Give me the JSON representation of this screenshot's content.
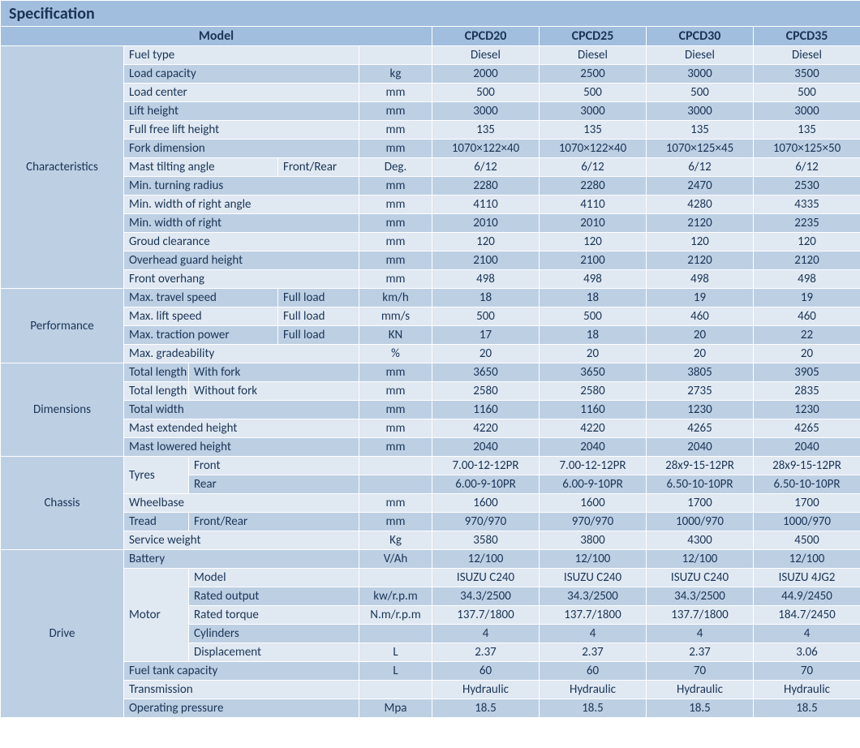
{
  "title": "Specification",
  "header": {
    "model_label": "Model",
    "models": [
      "CPCD20",
      "CPCD25",
      "CPCD30",
      "CPCD35"
    ]
  },
  "colors": {
    "header_bg": "#a1bede",
    "light_bg": "#e0e8f2",
    "dark_bg": "#bdcfe3",
    "border": "#ffffff",
    "text": "#1a3556"
  },
  "typography": {
    "title_fontsize": 20,
    "header_fontsize": 16,
    "body_fontsize": 15,
    "font_family": "Calibri"
  },
  "sections": [
    {
      "name": "Characteristics",
      "rows": [
        {
          "band": "light",
          "label": "Fuel type",
          "sub": "",
          "unit": "",
          "v": [
            "Diesel",
            "Diesel",
            "Diesel",
            "Diesel"
          ]
        },
        {
          "band": "dark",
          "label": "Load capacity",
          "sub": "",
          "unit": "kg",
          "v": [
            "2000",
            "2500",
            "3000",
            "3500"
          ]
        },
        {
          "band": "light",
          "label": "Load center",
          "sub": "",
          "unit": "mm",
          "v": [
            "500",
            "500",
            "500",
            "500"
          ]
        },
        {
          "band": "dark",
          "label": "Lift height",
          "sub": "",
          "unit": "mm",
          "v": [
            "3000",
            "3000",
            "3000",
            "3000"
          ]
        },
        {
          "band": "light",
          "label": "Full free lift height",
          "sub": "",
          "unit": "mm",
          "v": [
            "135",
            "135",
            "135",
            "135"
          ]
        },
        {
          "band": "dark",
          "label": "Fork dimension",
          "sub": "",
          "unit": "mm",
          "v": [
            "1070×122×40",
            "1070×122×40",
            "1070×125×45",
            "1070×125×50"
          ]
        },
        {
          "band": "light",
          "label": "Mast tilting angle",
          "sub": "Front/Rear",
          "unit": "Deg.",
          "v": [
            "6/12",
            "6/12",
            "6/12",
            "6/12"
          ],
          "label_span": 2
        },
        {
          "band": "dark",
          "label": "Min. turning radius",
          "sub": "",
          "unit": "mm",
          "v": [
            "2280",
            "2280",
            "2470",
            "2530"
          ]
        },
        {
          "band": "light",
          "label": "Min. width of right angle",
          "sub": "",
          "unit": "mm",
          "v": [
            "4110",
            "4110",
            "4280",
            "4335"
          ]
        },
        {
          "band": "dark",
          "label": "Min. width of right",
          "sub": "",
          "unit": "mm",
          "v": [
            "2010",
            "2010",
            "2120",
            "2235"
          ]
        },
        {
          "band": "light",
          "label": "Groud clearance",
          "sub": "",
          "unit": "mm",
          "v": [
            "120",
            "120",
            "120",
            "120"
          ]
        },
        {
          "band": "dark",
          "label": "Overhead guard height",
          "sub": "",
          "unit": "mm",
          "v": [
            "2100",
            "2100",
            "2120",
            "2120"
          ]
        },
        {
          "band": "light",
          "label": "Front overhang",
          "sub": "",
          "unit": "mm",
          "v": [
            "498",
            "498",
            "498",
            "498"
          ]
        }
      ]
    },
    {
      "name": "Performance",
      "rows": [
        {
          "band": "dark",
          "label": "Max. travel speed",
          "sub": "Full load",
          "unit": "km/h",
          "v": [
            "18",
            "18",
            "19",
            "19"
          ],
          "label_span": 2
        },
        {
          "band": "light",
          "label": "Max. lift speed",
          "sub": "Full load",
          "unit": "mm/s",
          "v": [
            "500",
            "500",
            "460",
            "460"
          ],
          "label_span": 2
        },
        {
          "band": "dark",
          "label": "Max. traction power",
          "sub": "Full load",
          "unit": "KN",
          "v": [
            "17",
            "18",
            "20",
            "22"
          ],
          "label_span": 2
        },
        {
          "band": "light",
          "label": "Max. gradeability",
          "sub": "",
          "unit": "%",
          "v": [
            "20",
            "20",
            "20",
            "20"
          ]
        }
      ]
    },
    {
      "name": "Dimensions",
      "rows": [
        {
          "band": "dark",
          "label": "Total length",
          "sub": "With fork",
          "unit": "mm",
          "v": [
            "3650",
            "3650",
            "3805",
            "3905"
          ],
          "label_span": 1,
          "label_col": 1,
          "sub_span": 2
        },
        {
          "band": "light",
          "label": "Total length",
          "sub": "Without fork",
          "unit": "mm",
          "v": [
            "2580",
            "2580",
            "2735",
            "2835"
          ],
          "label_span": 1,
          "label_col": 1,
          "sub_span": 2
        },
        {
          "band": "dark",
          "label": "Total width",
          "sub": "",
          "unit": "mm",
          "v": [
            "1160",
            "1160",
            "1230",
            "1230"
          ]
        },
        {
          "band": "light",
          "label": "Mast extended height",
          "sub": "",
          "unit": "mm",
          "v": [
            "4220",
            "4220",
            "4265",
            "4265"
          ]
        },
        {
          "band": "dark",
          "label": "Mast lowered height",
          "sub": "",
          "unit": "mm",
          "v": [
            "2040",
            "2040",
            "2040",
            "2040"
          ]
        }
      ]
    },
    {
      "name": "Chassis",
      "rows": [
        {
          "band": "light",
          "group": "Tyres",
          "group_rows": 2,
          "label": "Front",
          "unit": "",
          "v": [
            "7.00-12-12PR",
            "7.00-12-12PR",
            "28x9-15-12PR",
            "28x9-15-12PR"
          ],
          "sub_row": true
        },
        {
          "band": "dark",
          "label": "Rear",
          "unit": "",
          "v": [
            "6.00-9-10PR",
            "6.00-9-10PR",
            "6.50-10-10PR",
            "6.50-10-10PR"
          ],
          "sub_row": true
        },
        {
          "band": "light",
          "label": "Wheelbase",
          "sub": "",
          "unit": "mm",
          "v": [
            "1600",
            "1600",
            "1700",
            "1700"
          ]
        },
        {
          "band": "dark",
          "label": "Tread",
          "sub": "Front/Rear",
          "unit": "mm",
          "v": [
            "970/970",
            "970/970",
            "1000/970",
            "1000/970"
          ],
          "label_span": 1,
          "label_col": 1,
          "sub_span": 2
        },
        {
          "band": "light",
          "label": "Service weight",
          "sub": "",
          "unit": "Kg",
          "v": [
            "3580",
            "3800",
            "4300",
            "4500"
          ]
        }
      ]
    },
    {
      "name": "Drive",
      "rows": [
        {
          "band": "dark",
          "label": "Battery",
          "sub": "",
          "unit": "V/Ah",
          "v": [
            "12/100",
            "12/100",
            "12/100",
            "12/100"
          ]
        },
        {
          "band": "light",
          "group": "Motor",
          "group_rows": 5,
          "label": "Model",
          "unit": "",
          "v": [
            "ISUZU C240",
            "ISUZU C240",
            "ISUZU C240",
            "ISUZU 4JG2"
          ],
          "sub_row": true
        },
        {
          "band": "dark",
          "label": "Rated output",
          "unit": "kw/r.p.m",
          "v": [
            "34.3/2500",
            "34.3/2500",
            "34.3/2500",
            "44.9/2450"
          ],
          "sub_row": true
        },
        {
          "band": "light",
          "label": "Rated  torque",
          "unit": "N.m/r.p.m",
          "v": [
            "137.7/1800",
            "137.7/1800",
            "137.7/1800",
            "184.7/2450"
          ],
          "sub_row": true
        },
        {
          "band": "dark",
          "label": "Cylinders",
          "unit": "",
          "v": [
            "4",
            "4",
            "4",
            "4"
          ],
          "sub_row": true
        },
        {
          "band": "light",
          "label": "Displacement",
          "unit": "L",
          "v": [
            "2.37",
            "2.37",
            "2.37",
            "3.06"
          ],
          "sub_row": true
        },
        {
          "band": "dark",
          "label": "Fuel tank capacity",
          "sub": "",
          "unit": "L",
          "v": [
            "60",
            "60",
            "70",
            "70"
          ]
        },
        {
          "band": "light",
          "label": "Transmission",
          "sub": "",
          "unit": "",
          "v": [
            "Hydraulic",
            "Hydraulic",
            "Hydraulic",
            "Hydraulic"
          ]
        },
        {
          "band": "dark",
          "label": "Operating pressure",
          "sub": "",
          "unit": "Mpa",
          "v": [
            "18.5",
            "18.5",
            "18.5",
            "18.5"
          ]
        }
      ]
    }
  ]
}
